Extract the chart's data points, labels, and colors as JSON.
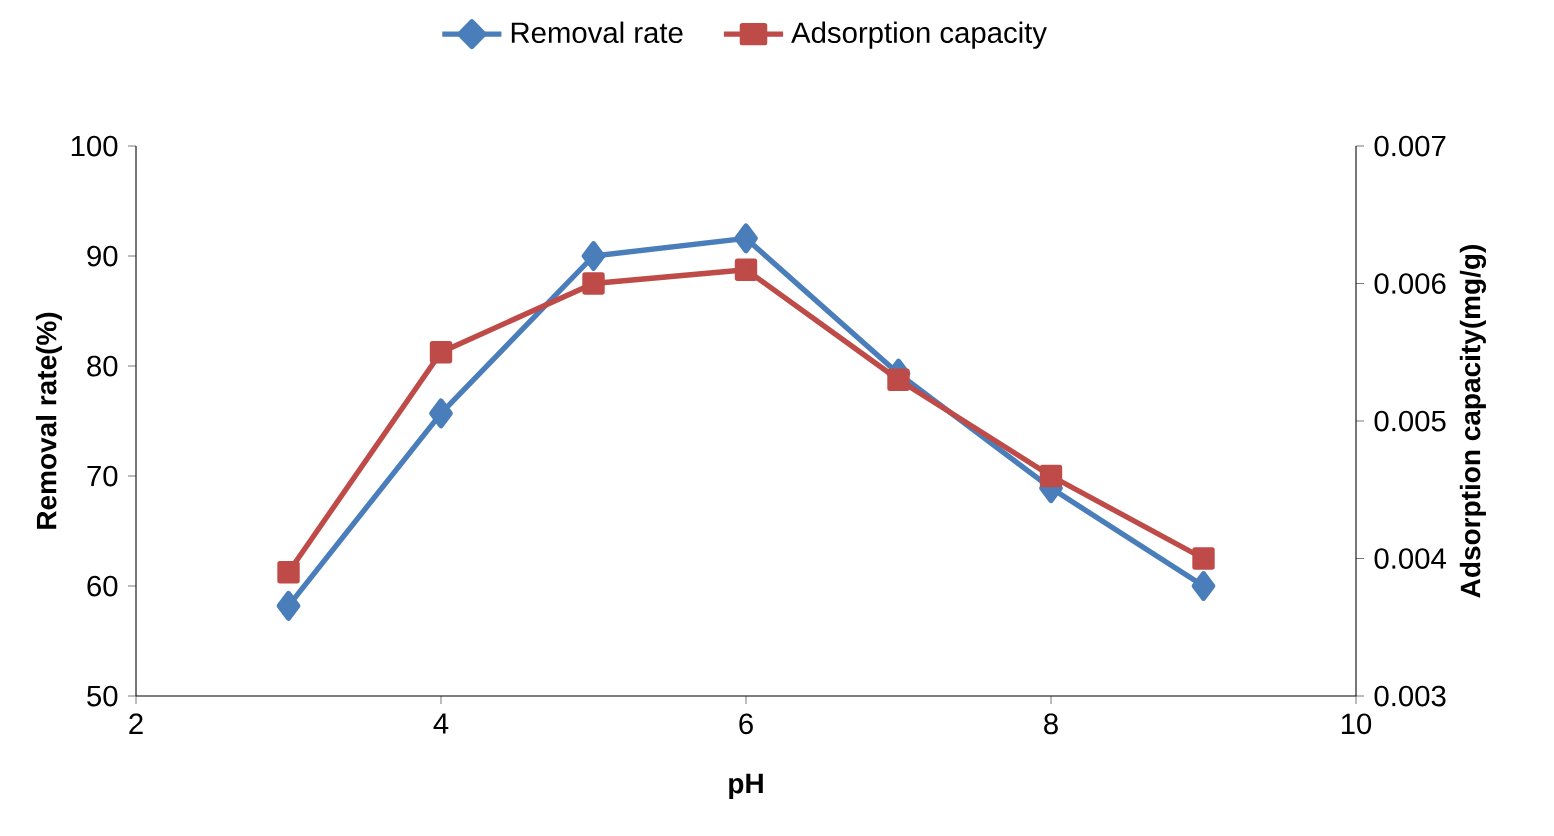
{
  "chart_data": {
    "type": "line",
    "xlabel": "pH",
    "ylabel": "Removal rate(%)",
    "y2label": "Adsorption capacity(mg/g)",
    "x": [
      3,
      4,
      5,
      6,
      7,
      8,
      9
    ],
    "xlim": [
      2,
      10
    ],
    "xticks": [
      2,
      4,
      6,
      8,
      10
    ],
    "ylim": [
      50,
      100
    ],
    "yticks": [
      50,
      60,
      70,
      80,
      90,
      100
    ],
    "y2lim": [
      0.003,
      0.007
    ],
    "y2ticks": [
      0.003,
      0.004,
      0.005,
      0.006,
      0.007
    ],
    "legend": "top",
    "grid": false,
    "series": [
      {
        "name": "Removal rate",
        "color": "#4a7ebb",
        "marker": "diamond",
        "values": [
          58.2,
          75.7,
          90.0,
          91.6,
          79.3,
          68.9,
          60.0
        ]
      },
      {
        "name": "Adsorption capacity",
        "color": "#be4b48",
        "marker": "square",
        "axis": "y2",
        "values": [
          0.0039,
          0.0055,
          0.006,
          0.0061,
          0.0053,
          0.0046,
          0.004
        ]
      }
    ]
  }
}
